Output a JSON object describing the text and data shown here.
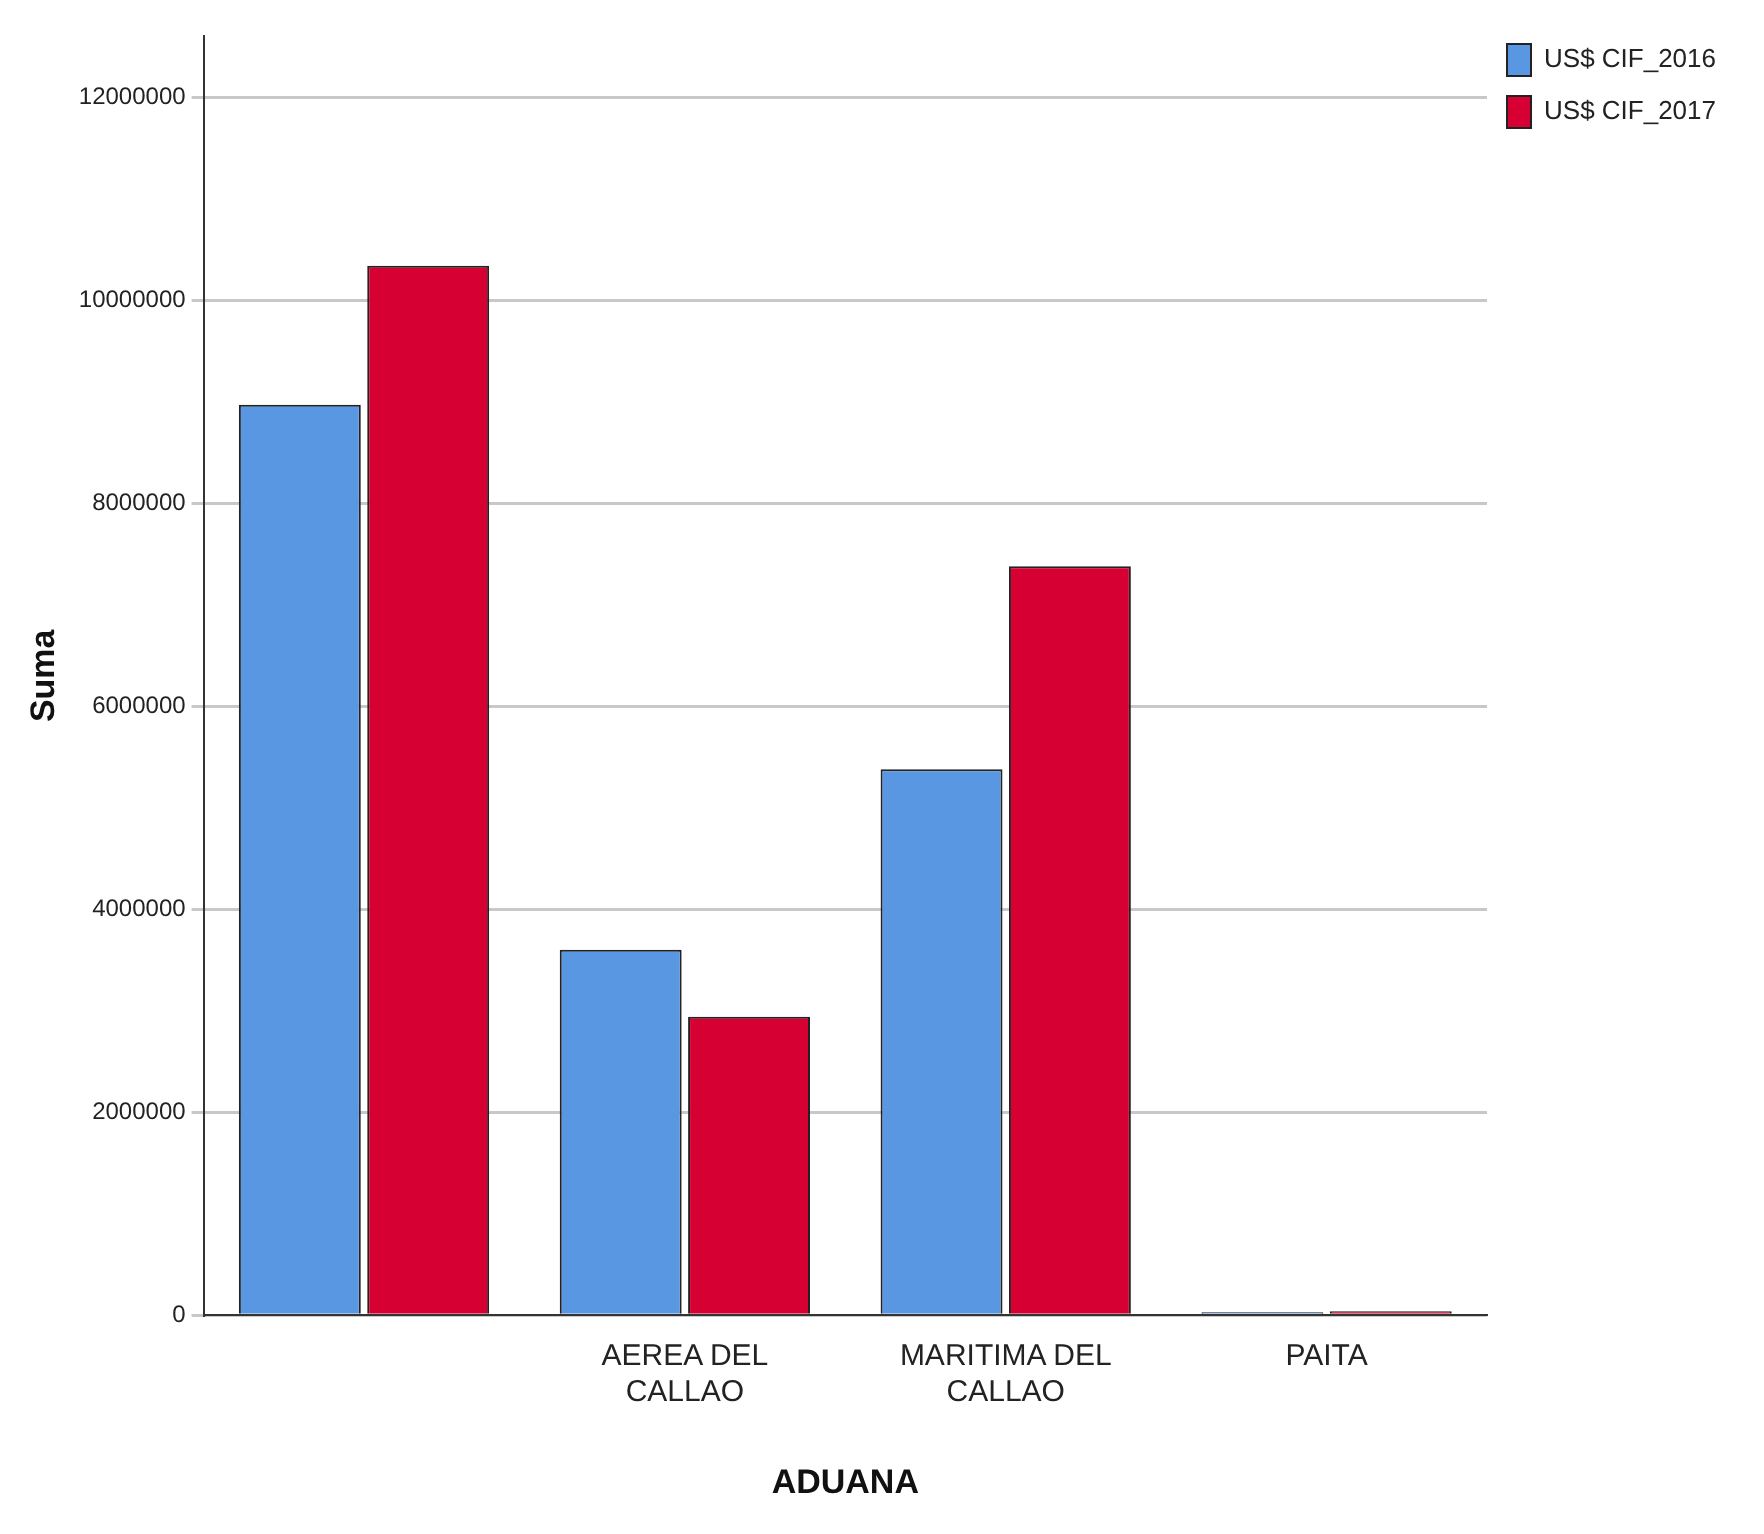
{
  "chart_data": {
    "type": "bar",
    "xlabel": "ADUANA",
    "ylabel": "Suma",
    "categories": [
      null,
      "AEREA DEL CALLAO",
      "MARITIMA DEL CALLAO",
      "PAITA"
    ],
    "series": [
      {
        "name": "US$ CIF_2016",
        "color": "#5a97e3",
        "values": [
          8970000,
          3600000,
          5380000,
          30000
        ]
      },
      {
        "name": "US$ CIF_2017",
        "color": "#d60032",
        "values": [
          10340000,
          2940000,
          7380000,
          40000
        ]
      }
    ],
    "ylim": [
      0,
      12600000
    ],
    "yticks": [
      0,
      2000000,
      4000000,
      6000000,
      8000000,
      10000000,
      12000000
    ],
    "grid": "y",
    "legend": "top right"
  }
}
